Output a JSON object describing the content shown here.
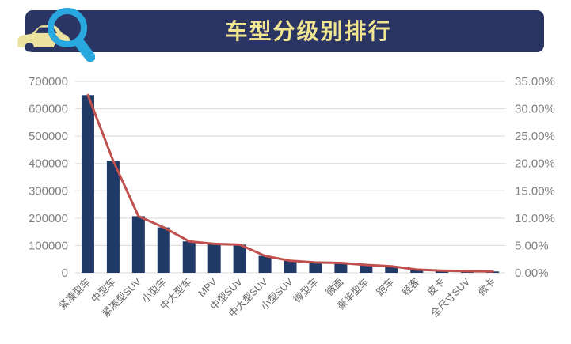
{
  "header": {
    "title": "车型分级别排行",
    "bar_color": "#2B3563",
    "title_color": "#F1E590",
    "car_icon_color": "#EBE2A0",
    "magnifier_icon_color": "#29A8E0"
  },
  "chart_data": {
    "type": "combo-bar-line",
    "title": "车型分级别排行",
    "categories": [
      "紧凑型车",
      "中型车",
      "紧凑型SUV",
      "小型车",
      "中大型车",
      "MPV",
      "中型SUV",
      "中大型SUV",
      "小型SUV",
      "微型车",
      "微面",
      "豪华型车",
      "跑车",
      "轻客",
      "皮卡",
      "全尺寸SUV",
      "微卡"
    ],
    "series": [
      {
        "role": "bars",
        "type": "bar",
        "axis": "left",
        "color": "#203A68",
        "values": [
          650000,
          410000,
          207000,
          166000,
          115000,
          106000,
          103000,
          62000,
          44000,
          38000,
          36000,
          29000,
          24000,
          12000,
          8000,
          6000,
          5000
        ]
      },
      {
        "role": "line",
        "type": "line",
        "axis": "right",
        "color": "#C0504D",
        "values": [
          32.5,
          20.5,
          10.35,
          8.3,
          5.75,
          5.3,
          5.15,
          3.1,
          2.2,
          1.9,
          1.8,
          1.45,
          1.2,
          0.6,
          0.4,
          0.3,
          0.25
        ]
      }
    ],
    "left_axis": {
      "min": 0,
      "max": 700000,
      "step": 100000,
      "tick_labels_top_to_bottom": [
        "700000",
        "600000",
        "500000",
        "400000",
        "300000",
        "200000",
        "100000",
        "0"
      ]
    },
    "right_axis": {
      "min": 0,
      "max": 35,
      "step": 5,
      "tick_labels_top_to_bottom": [
        "35.00%",
        "30.00%",
        "25.00%",
        "20.00%",
        "15.00%",
        "10.00%",
        "5.00%",
        "0.00%"
      ]
    },
    "grid": true,
    "legend": "none",
    "gridline_color": "#D9D9D9",
    "axis_text_color": "#808080",
    "category_text_color": "#666666",
    "background": "#FFFFFF"
  }
}
